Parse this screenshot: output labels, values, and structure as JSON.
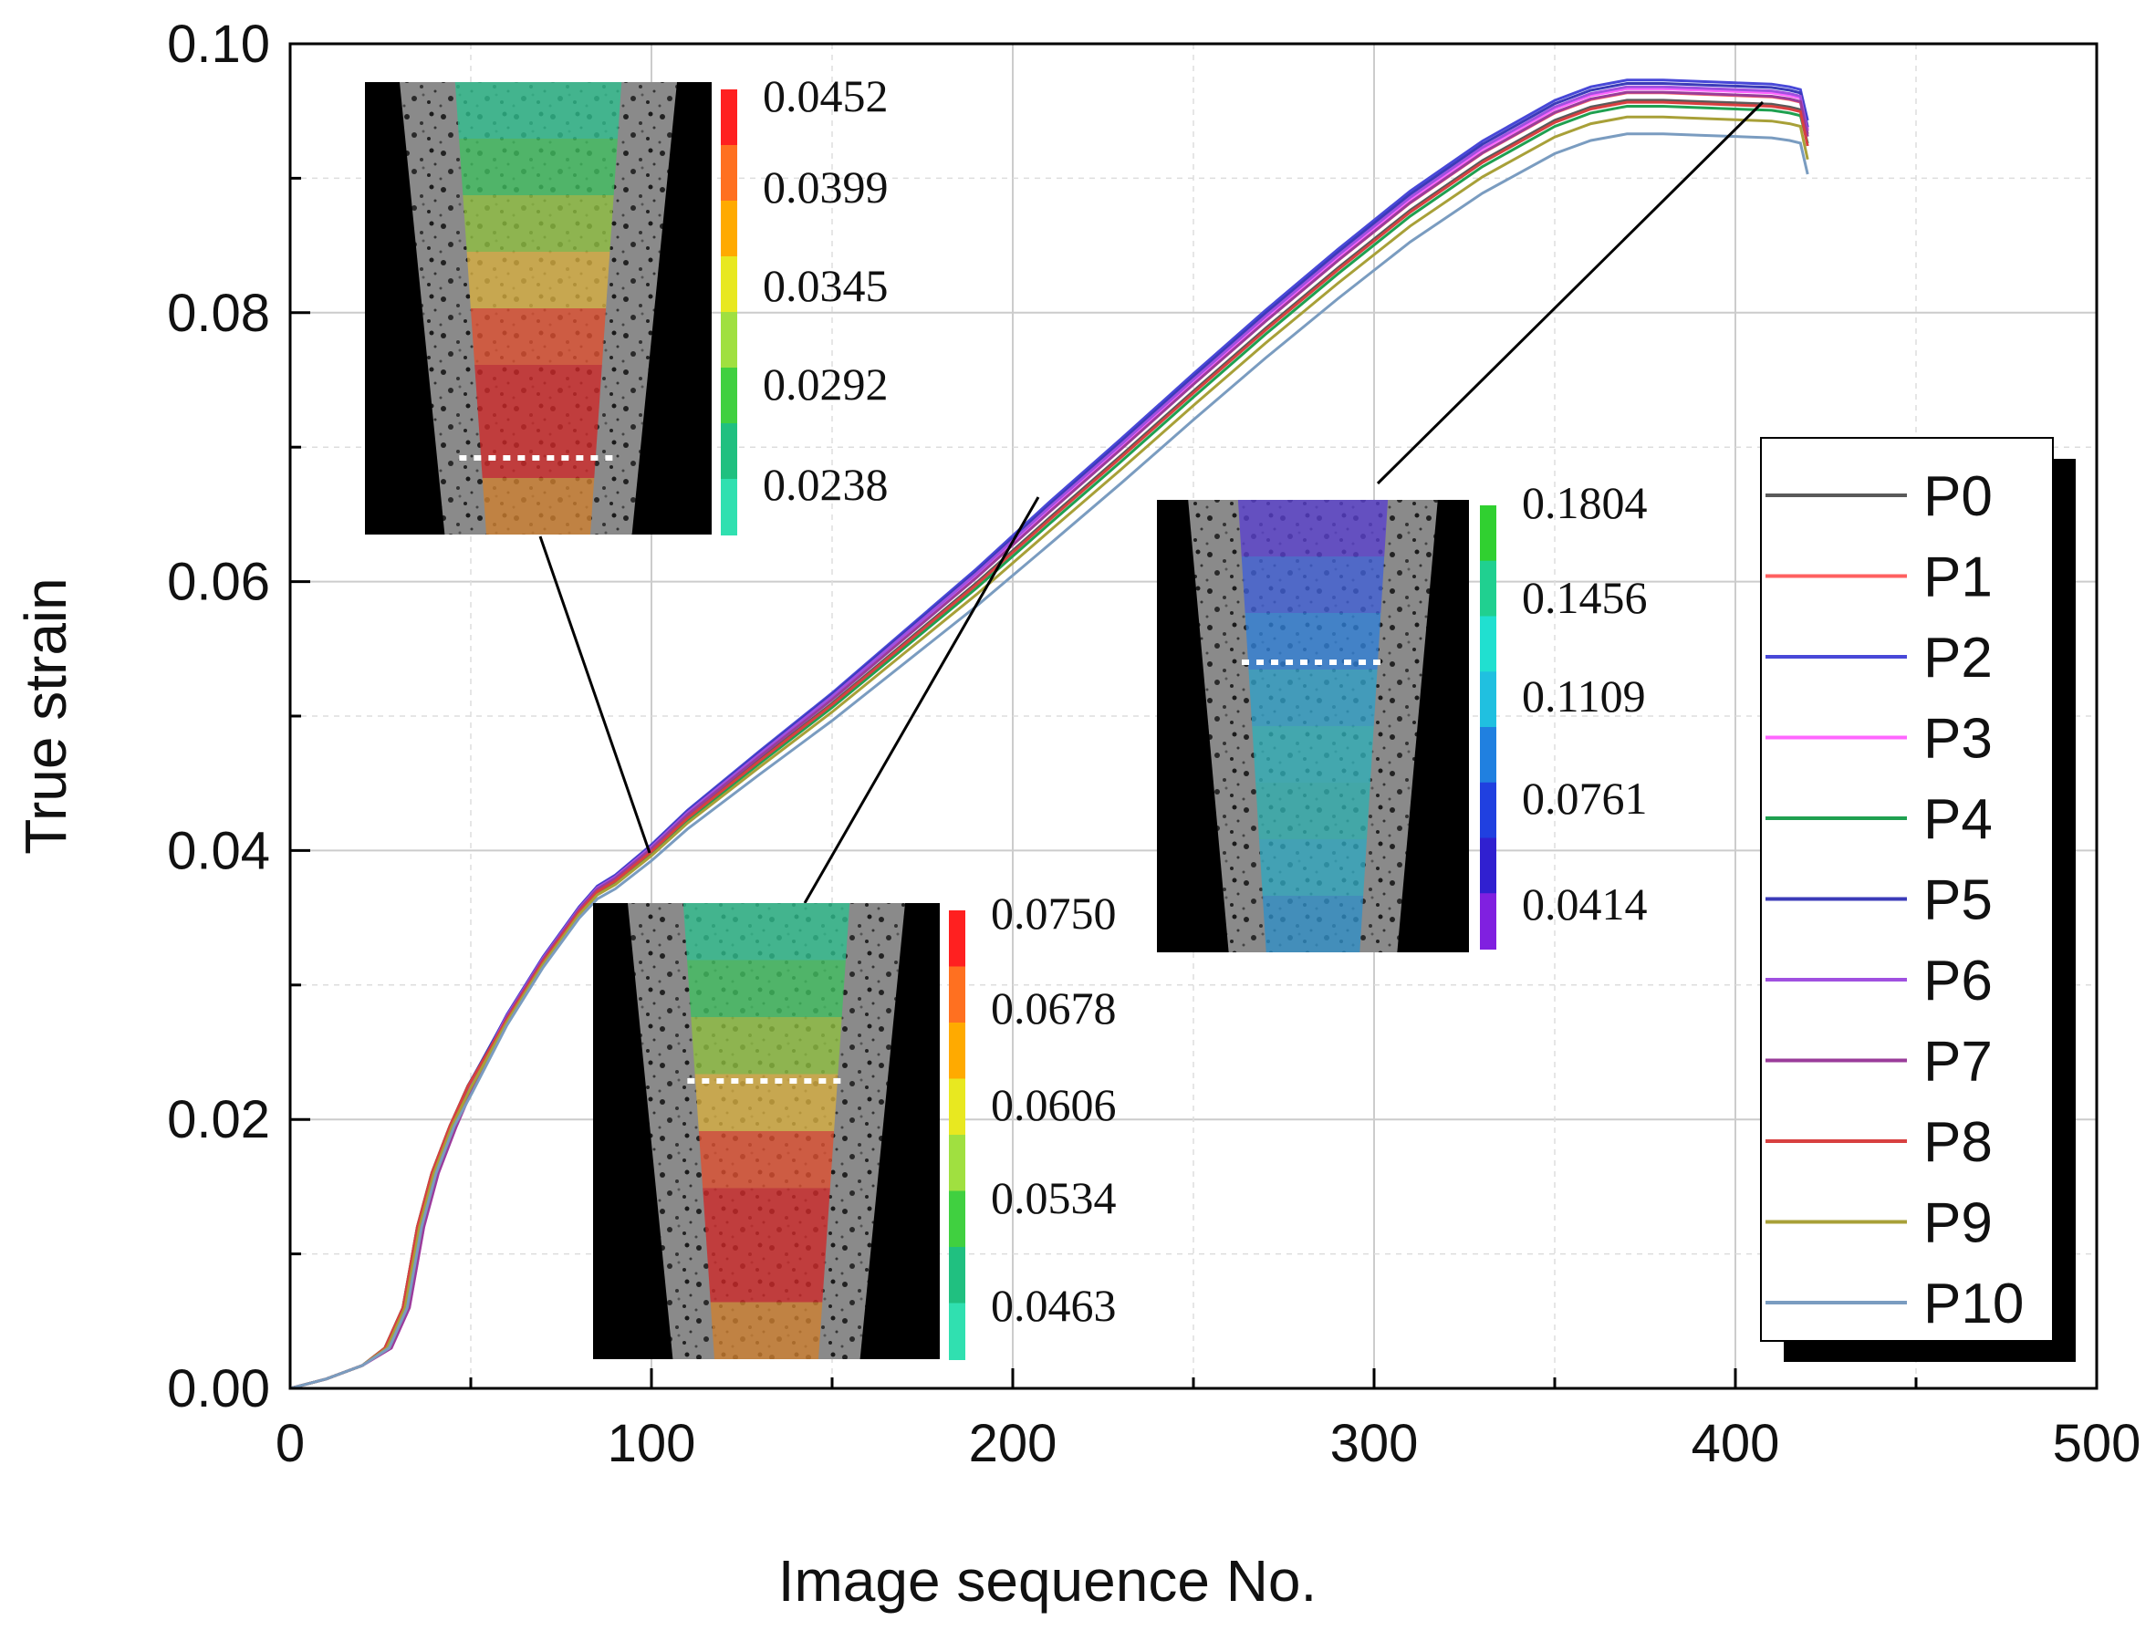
{
  "chart_data": {
    "type": "line",
    "xlabel": "Image sequence No.",
    "ylabel": "True strain",
    "xlim": [
      0,
      500
    ],
    "ylim": [
      0,
      0.1
    ],
    "x_ticks": [
      "0",
      "100",
      "200",
      "300",
      "400",
      "500"
    ],
    "y_ticks": [
      "0.00",
      "0.02",
      "0.04",
      "0.06",
      "0.08",
      "0.10"
    ],
    "grid": true,
    "legend_position": "right",
    "series": [
      {
        "name": "P0",
        "color": "#5a5a5a",
        "offset": 0.0,
        "peak": 0.0958
      },
      {
        "name": "P1",
        "color": "#ff6060",
        "offset": 0.0003,
        "peak": 0.0962
      },
      {
        "name": "P2",
        "color": "#4848d8",
        "offset": 0.0006,
        "peak": 0.097
      },
      {
        "name": "P3",
        "color": "#ff66ff",
        "offset": 0.0003,
        "peak": 0.0965
      },
      {
        "name": "P4",
        "color": "#1fa050",
        "offset": -0.0003,
        "peak": 0.0955
      },
      {
        "name": "P5",
        "color": "#3b3bb8",
        "offset": 0.0005,
        "peak": 0.0968
      },
      {
        "name": "P6",
        "color": "#a050e0",
        "offset": 0.0004,
        "peak": 0.0966
      },
      {
        "name": "P7",
        "color": "#9a3c9a",
        "offset": 0.0002,
        "peak": 0.0963
      },
      {
        "name": "P8",
        "color": "#d84040",
        "offset": -0.0001,
        "peak": 0.0957
      },
      {
        "name": "P9",
        "color": "#a8a038",
        "offset": -0.0005,
        "peak": 0.0948
      },
      {
        "name": "P10",
        "color": "#7a9cc0",
        "offset": -0.001,
        "peak": 0.0938
      }
    ],
    "base_curve": {
      "x": [
        0,
        10,
        20,
        27,
        32,
        36,
        40,
        45,
        50,
        60,
        70,
        80,
        85,
        90,
        100,
        110,
        130,
        150,
        170,
        190,
        210,
        230,
        250,
        270,
        290,
        310,
        330,
        350,
        360,
        370,
        380,
        390,
        400,
        410,
        415,
        418,
        420
      ],
      "y": [
        0,
        0.0007,
        0.0017,
        0.003,
        0.006,
        0.012,
        0.016,
        0.0195,
        0.0225,
        0.0275,
        0.0318,
        0.0355,
        0.037,
        0.0378,
        0.04,
        0.0425,
        0.0468,
        0.051,
        0.0555,
        0.06,
        0.0648,
        0.0695,
        0.0743,
        0.079,
        0.0835,
        0.0878,
        0.0915,
        0.0945,
        0.0955,
        0.096,
        0.096,
        0.0959,
        0.0958,
        0.0957,
        0.0955,
        0.0953,
        0.093
      ]
    },
    "insets": [
      {
        "name": "inset-1",
        "colorbar_labels": [
          "0.0452",
          "0.0399",
          "0.0345",
          "0.0292",
          "0.0238"
        ],
        "colors": [
          "#ff2020",
          "#ff7020",
          "#ffaa00",
          "#e8e820",
          "#a0e040",
          "#40d040",
          "#20c080",
          "#30e0b0"
        ]
      },
      {
        "name": "inset-2",
        "colorbar_labels": [
          "0.0750",
          "0.0678",
          "0.0606",
          "0.0534",
          "0.0463"
        ],
        "colors": [
          "#ff2020",
          "#ff7020",
          "#ffaa00",
          "#e8e820",
          "#a0e040",
          "#40d040",
          "#20c080",
          "#30e0b0"
        ]
      },
      {
        "name": "inset-3",
        "colorbar_labels": [
          "0.1804",
          "0.1456",
          "0.1109",
          "0.0761",
          "0.0414"
        ],
        "colors": [
          "#30d030",
          "#20d090",
          "#20e0d0",
          "#20c0e0",
          "#2080e0",
          "#2040e0",
          "#3020d0",
          "#8020e0"
        ]
      }
    ]
  }
}
